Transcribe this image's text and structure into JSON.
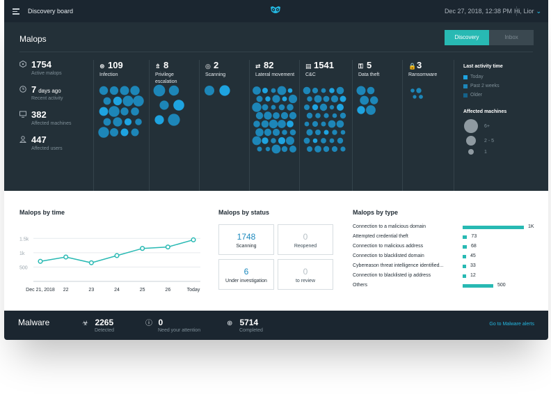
{
  "topbar": {
    "title": "Discovery board",
    "datetime": "Dec 27, 2018, 12:38 PM",
    "user": "Hi, Lior"
  },
  "malops": {
    "title": "Malops",
    "tabs": [
      {
        "label": "Discovery",
        "active": true
      },
      {
        "label": "Inbox",
        "active": false
      }
    ],
    "summary": [
      {
        "icon": "malop-icon",
        "value": "1754",
        "suffix": "",
        "label": "Active malops"
      },
      {
        "icon": "clock-icon",
        "value": "7",
        "suffix": "days ago",
        "label": "Recent activity"
      },
      {
        "icon": "monitor-icon",
        "value": "382",
        "suffix": "",
        "label": "Affected machines"
      },
      {
        "icon": "user-icon",
        "value": "447",
        "suffix": "",
        "label": "Affected users"
      }
    ],
    "categories": [
      {
        "icon": "infection-icon",
        "glyph": "⊛",
        "value": "109",
        "label": "Infection"
      },
      {
        "icon": "escalation-icon",
        "glyph": "⇯",
        "value": "8",
        "label": "Privilege escalation"
      },
      {
        "icon": "scanning-icon",
        "glyph": "◎",
        "value": "2",
        "label": "Scanning"
      },
      {
        "icon": "lateral-movement-icon",
        "glyph": "⇄",
        "value": "82",
        "label": "Lateral movement"
      },
      {
        "icon": "cnc-icon",
        "glyph": "▤",
        "value": "1541",
        "label": "C&C"
      },
      {
        "icon": "data-theft-icon",
        "glyph": "⚿",
        "value": "5",
        "label": "Data theft"
      },
      {
        "icon": "ransomware-icon",
        "glyph": "🔒",
        "value": "3",
        "label": "Ransomware"
      }
    ],
    "legend": {
      "activity_title": "Last activity time",
      "activity": [
        {
          "label": "Today",
          "color": "#1ea3e0"
        },
        {
          "label": "Past 2 weeks",
          "color": "#1d86b8"
        },
        {
          "label": "Older",
          "color": "#15628a"
        }
      ],
      "machines_title": "Affected machines",
      "machines": [
        "6+",
        "2 - 5",
        "1"
      ]
    }
  },
  "malops_by_time": {
    "title": "Malops by time",
    "chart_data": {
      "type": "line",
      "x": [
        "Dec 21, 2018",
        "22",
        "23",
        "24",
        "25",
        "26",
        "Today"
      ],
      "values": [
        700,
        850,
        650,
        900,
        1150,
        1200,
        1450
      ],
      "yticks": [
        "1.5k",
        "1k",
        "500"
      ],
      "ylim": [
        0,
        1750
      ],
      "grid": true,
      "color": "#28b9b3"
    }
  },
  "malops_by_status": {
    "title": "Malops by status",
    "cards": [
      {
        "value": "1748",
        "label": "Scanning",
        "active": true
      },
      {
        "value": "0",
        "label": "Reopened",
        "active": false
      },
      {
        "value": "6",
        "label": "Under investigation",
        "active": true
      },
      {
        "value": "0",
        "label": "to review",
        "active": false
      }
    ]
  },
  "malops_by_type": {
    "title": "Malops by type",
    "chart_data": {
      "type": "bar",
      "categories": [
        "Connection to a malicious domain",
        "Attempted credential theft",
        "Connection to malicious address",
        "Connection to blacklisted domain",
        "Cybereason threat intelligence identified...",
        "Connection to blacklisted ip address",
        "Others"
      ],
      "values": [
        1000,
        73,
        68,
        45,
        33,
        12,
        500
      ],
      "labels": [
        "1K",
        "73",
        "68",
        "45",
        "33",
        "12",
        "500"
      ],
      "color": "#28b9b3"
    }
  },
  "malware": {
    "title": "Malware",
    "items": [
      {
        "icon": "biohazard-icon",
        "glyph": "☣",
        "value": "2265",
        "label": "Detected"
      },
      {
        "icon": "alert-icon",
        "glyph": "ⓘ",
        "value": "0",
        "label": "Need your attention"
      },
      {
        "icon": "completed-icon",
        "glyph": "⊕",
        "value": "5714",
        "label": "Completed"
      }
    ],
    "link": "Go to Malware alerts"
  }
}
